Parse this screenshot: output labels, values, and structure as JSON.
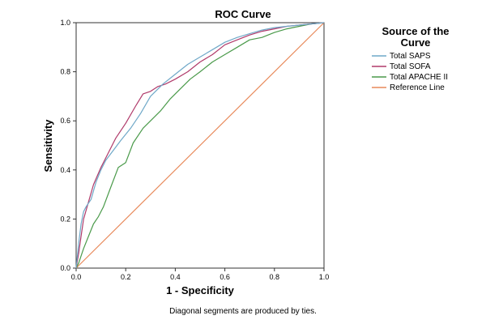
{
  "chart_data": {
    "type": "line",
    "title": "ROC Curve",
    "xlabel": "1 - Specificity",
    "ylabel": "Sensitivity",
    "xlim": [
      0,
      1
    ],
    "ylim": [
      0,
      1
    ],
    "x_ticks": [
      "0.0",
      "0.2",
      "0.4",
      "0.6",
      "0.8",
      "1.0"
    ],
    "y_ticks": [
      "0.0",
      "0.2",
      "0.4",
      "0.6",
      "0.8",
      "1.0"
    ],
    "legend_title": "Source of the Curve",
    "legend_position": "right",
    "footnote": "Diagonal segments are produced by ties.",
    "series": [
      {
        "name": "Total SAPS",
        "color": "#6fa8c8",
        "x": [
          0,
          0.01,
          0.02,
          0.03,
          0.04,
          0.06,
          0.08,
          0.1,
          0.12,
          0.15,
          0.18,
          0.22,
          0.26,
          0.3,
          0.35,
          0.4,
          0.45,
          0.5,
          0.55,
          0.6,
          0.65,
          0.7,
          0.75,
          0.8,
          0.85,
          0.9,
          0.95,
          1
        ],
        "y": [
          0,
          0.1,
          0.18,
          0.23,
          0.25,
          0.28,
          0.35,
          0.4,
          0.44,
          0.48,
          0.52,
          0.57,
          0.63,
          0.7,
          0.75,
          0.79,
          0.83,
          0.86,
          0.89,
          0.92,
          0.94,
          0.955,
          0.97,
          0.98,
          0.985,
          0.99,
          0.995,
          1
        ]
      },
      {
        "name": "Total SOFA",
        "color": "#b03a6a",
        "x": [
          0,
          0.01,
          0.02,
          0.03,
          0.05,
          0.07,
          0.1,
          0.13,
          0.16,
          0.2,
          0.24,
          0.27,
          0.3,
          0.33,
          0.36,
          0.4,
          0.45,
          0.5,
          0.55,
          0.6,
          0.65,
          0.7,
          0.75,
          0.8,
          0.85,
          0.9,
          0.95,
          1
        ],
        "y": [
          0,
          0.06,
          0.13,
          0.2,
          0.27,
          0.34,
          0.41,
          0.47,
          0.53,
          0.59,
          0.66,
          0.71,
          0.72,
          0.74,
          0.75,
          0.77,
          0.8,
          0.84,
          0.87,
          0.91,
          0.93,
          0.95,
          0.965,
          0.975,
          0.985,
          0.99,
          0.995,
          1
        ]
      },
      {
        "name": "Total APACHE II",
        "color": "#4a9a4a",
        "x": [
          0,
          0.01,
          0.02,
          0.03,
          0.05,
          0.07,
          0.09,
          0.11,
          0.14,
          0.17,
          0.2,
          0.23,
          0.27,
          0.3,
          0.34,
          0.38,
          0.42,
          0.46,
          0.5,
          0.55,
          0.6,
          0.65,
          0.7,
          0.75,
          0.8,
          0.85,
          0.9,
          0.95,
          1
        ],
        "y": [
          0,
          0.02,
          0.05,
          0.08,
          0.13,
          0.18,
          0.21,
          0.25,
          0.33,
          0.41,
          0.43,
          0.51,
          0.57,
          0.6,
          0.64,
          0.69,
          0.73,
          0.77,
          0.8,
          0.84,
          0.87,
          0.9,
          0.93,
          0.94,
          0.96,
          0.975,
          0.985,
          0.995,
          1
        ]
      },
      {
        "name": "Reference Line",
        "color": "#e8895a",
        "x": [
          0,
          1
        ],
        "y": [
          0,
          1
        ]
      }
    ]
  }
}
